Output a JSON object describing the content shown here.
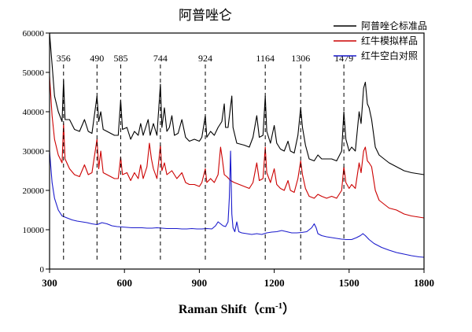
{
  "chart_data": {
    "type": "line",
    "title": "阿普唑仑",
    "xlabel": "Raman Shift（cm",
    "xlabel_sup": "-1",
    "xlabel_close": "）",
    "ylabel": "",
    "xlim": [
      300,
      1800
    ],
    "ylim": [
      0,
      60000
    ],
    "x_ticks": [
      300,
      600,
      900,
      1200,
      1500,
      1800
    ],
    "y_ticks": [
      0,
      10000,
      20000,
      30000,
      40000,
      50000,
      60000
    ],
    "grid": false,
    "legend_position": "top-right",
    "peak_labels": [
      356,
      490,
      585,
      744,
      924,
      1164,
      1306,
      1479
    ],
    "series": [
      {
        "name": "阿普唑仑标准品",
        "color": "#000000",
        "points": [
          [
            300,
            64000
          ],
          [
            310,
            52000
          ],
          [
            320,
            44000
          ],
          [
            335,
            40000
          ],
          [
            350,
            37500
          ],
          [
            356,
            48000
          ],
          [
            362,
            38000
          ],
          [
            380,
            38000
          ],
          [
            400,
            35500
          ],
          [
            420,
            35000
          ],
          [
            440,
            38000
          ],
          [
            455,
            35000
          ],
          [
            470,
            34500
          ],
          [
            490,
            44000
          ],
          [
            497,
            37500
          ],
          [
            505,
            40000
          ],
          [
            515,
            35500
          ],
          [
            530,
            35000
          ],
          [
            545,
            34500
          ],
          [
            560,
            34000
          ],
          [
            575,
            34000
          ],
          [
            585,
            43000
          ],
          [
            592,
            35500
          ],
          [
            610,
            36000
          ],
          [
            625,
            33000
          ],
          [
            640,
            35000
          ],
          [
            655,
            34000
          ],
          [
            665,
            37000
          ],
          [
            675,
            34000
          ],
          [
            695,
            38000
          ],
          [
            703,
            34000
          ],
          [
            716,
            37000
          ],
          [
            730,
            34000
          ],
          [
            744,
            47000
          ],
          [
            750,
            36000
          ],
          [
            760,
            41000
          ],
          [
            770,
            35000
          ],
          [
            780,
            36000
          ],
          [
            790,
            39000
          ],
          [
            800,
            34000
          ],
          [
            815,
            34500
          ],
          [
            830,
            38000
          ],
          [
            845,
            33500
          ],
          [
            860,
            32500
          ],
          [
            880,
            33000
          ],
          [
            900,
            32500
          ],
          [
            910,
            33500
          ],
          [
            924,
            39000
          ],
          [
            930,
            33500
          ],
          [
            945,
            35000
          ],
          [
            960,
            34000
          ],
          [
            975,
            36000
          ],
          [
            990,
            37500
          ],
          [
            1000,
            42000
          ],
          [
            1005,
            36000
          ],
          [
            1015,
            36000
          ],
          [
            1030,
            44000
          ],
          [
            1035,
            36000
          ],
          [
            1050,
            32000
          ],
          [
            1080,
            31500
          ],
          [
            1100,
            31000
          ],
          [
            1115,
            33500
          ],
          [
            1130,
            39000
          ],
          [
            1140,
            33500
          ],
          [
            1155,
            34000
          ],
          [
            1164,
            44000
          ],
          [
            1170,
            35000
          ],
          [
            1185,
            32000
          ],
          [
            1200,
            36500
          ],
          [
            1210,
            32000
          ],
          [
            1225,
            30500
          ],
          [
            1240,
            30000
          ],
          [
            1255,
            32500
          ],
          [
            1265,
            30000
          ],
          [
            1280,
            29500
          ],
          [
            1295,
            34000
          ],
          [
            1306,
            41000
          ],
          [
            1313,
            36000
          ],
          [
            1325,
            31500
          ],
          [
            1340,
            28000
          ],
          [
            1360,
            27500
          ],
          [
            1375,
            29000
          ],
          [
            1390,
            28000
          ],
          [
            1410,
            28000
          ],
          [
            1430,
            28000
          ],
          [
            1450,
            27500
          ],
          [
            1470,
            30000
          ],
          [
            1479,
            40000
          ],
          [
            1487,
            33000
          ],
          [
            1500,
            30000
          ],
          [
            1510,
            31000
          ],
          [
            1525,
            30000
          ],
          [
            1540,
            40000
          ],
          [
            1548,
            37000
          ],
          [
            1558,
            46000
          ],
          [
            1565,
            47500
          ],
          [
            1573,
            42000
          ],
          [
            1580,
            41000
          ],
          [
            1590,
            38000
          ],
          [
            1605,
            31000
          ],
          [
            1620,
            29000
          ],
          [
            1640,
            28000
          ],
          [
            1660,
            27000
          ],
          [
            1690,
            26000
          ],
          [
            1720,
            25000
          ],
          [
            1750,
            24500
          ],
          [
            1780,
            24200
          ],
          [
            1800,
            24000
          ]
        ]
      },
      {
        "name": "红牛模拟样品",
        "color": "#cc0000",
        "points": [
          [
            300,
            49000
          ],
          [
            310,
            39000
          ],
          [
            320,
            33000
          ],
          [
            335,
            29000
          ],
          [
            350,
            27000
          ],
          [
            356,
            37000
          ],
          [
            362,
            28000
          ],
          [
            380,
            25500
          ],
          [
            400,
            24000
          ],
          [
            420,
            23500
          ],
          [
            440,
            26500
          ],
          [
            455,
            24000
          ],
          [
            470,
            24500
          ],
          [
            490,
            33000
          ],
          [
            497,
            25500
          ],
          [
            505,
            30000
          ],
          [
            515,
            24500
          ],
          [
            530,
            24000
          ],
          [
            545,
            23500
          ],
          [
            560,
            23000
          ],
          [
            575,
            23000
          ],
          [
            585,
            28500
          ],
          [
            592,
            24000
          ],
          [
            610,
            24500
          ],
          [
            625,
            22500
          ],
          [
            640,
            24500
          ],
          [
            655,
            23000
          ],
          [
            665,
            26500
          ],
          [
            675,
            23000
          ],
          [
            690,
            26000
          ],
          [
            700,
            32000
          ],
          [
            708,
            28000
          ],
          [
            716,
            25500
          ],
          [
            730,
            23000
          ],
          [
            744,
            31500
          ],
          [
            750,
            25000
          ],
          [
            760,
            27000
          ],
          [
            770,
            24000
          ],
          [
            790,
            25000
          ],
          [
            810,
            23000
          ],
          [
            830,
            24500
          ],
          [
            845,
            22000
          ],
          [
            860,
            21500
          ],
          [
            880,
            21500
          ],
          [
            900,
            21000
          ],
          [
            910,
            22000
          ],
          [
            924,
            25500
          ],
          [
            930,
            22000
          ],
          [
            945,
            23000
          ],
          [
            960,
            22000
          ],
          [
            975,
            24000
          ],
          [
            985,
            31000
          ],
          [
            992,
            28000
          ],
          [
            1000,
            24000
          ],
          [
            1010,
            23500
          ],
          [
            1025,
            22500
          ],
          [
            1040,
            22000
          ],
          [
            1060,
            21500
          ],
          [
            1080,
            21000
          ],
          [
            1100,
            20500
          ],
          [
            1115,
            22000
          ],
          [
            1130,
            27000
          ],
          [
            1140,
            22500
          ],
          [
            1155,
            23000
          ],
          [
            1164,
            31000
          ],
          [
            1170,
            24500
          ],
          [
            1185,
            22000
          ],
          [
            1200,
            25500
          ],
          [
            1210,
            21500
          ],
          [
            1225,
            20500
          ],
          [
            1240,
            20000
          ],
          [
            1255,
            22500
          ],
          [
            1265,
            20000
          ],
          [
            1280,
            19500
          ],
          [
            1295,
            23000
          ],
          [
            1306,
            27500
          ],
          [
            1313,
            24000
          ],
          [
            1325,
            20500
          ],
          [
            1340,
            18500
          ],
          [
            1360,
            18000
          ],
          [
            1375,
            19000
          ],
          [
            1390,
            18500
          ],
          [
            1410,
            18000
          ],
          [
            1430,
            18500
          ],
          [
            1450,
            18000
          ],
          [
            1470,
            20000
          ],
          [
            1479,
            26000
          ],
          [
            1487,
            22000
          ],
          [
            1500,
            20500
          ],
          [
            1510,
            21500
          ],
          [
            1525,
            20500
          ],
          [
            1540,
            27000
          ],
          [
            1548,
            24500
          ],
          [
            1558,
            30000
          ],
          [
            1565,
            31000
          ],
          [
            1573,
            27500
          ],
          [
            1580,
            27000
          ],
          [
            1590,
            26000
          ],
          [
            1605,
            20000
          ],
          [
            1620,
            17500
          ],
          [
            1640,
            16500
          ],
          [
            1660,
            15500
          ],
          [
            1690,
            15000
          ],
          [
            1720,
            14000
          ],
          [
            1750,
            13500
          ],
          [
            1780,
            13200
          ],
          [
            1800,
            13000
          ]
        ]
      },
      {
        "name": "红牛空白对照",
        "color": "#1a1acc",
        "points": [
          [
            300,
            30000
          ],
          [
            310,
            22000
          ],
          [
            320,
            18000
          ],
          [
            335,
            15000
          ],
          [
            350,
            13500
          ],
          [
            370,
            13000
          ],
          [
            390,
            12500
          ],
          [
            410,
            12200
          ],
          [
            430,
            12000
          ],
          [
            450,
            11800
          ],
          [
            470,
            11500
          ],
          [
            490,
            11300
          ],
          [
            510,
            11800
          ],
          [
            530,
            11500
          ],
          [
            550,
            11000
          ],
          [
            570,
            10800
          ],
          [
            590,
            10700
          ],
          [
            610,
            10600
          ],
          [
            630,
            10500
          ],
          [
            650,
            10500
          ],
          [
            670,
            10500
          ],
          [
            690,
            10400
          ],
          [
            710,
            10400
          ],
          [
            730,
            10500
          ],
          [
            750,
            10400
          ],
          [
            770,
            10300
          ],
          [
            790,
            10300
          ],
          [
            810,
            10300
          ],
          [
            830,
            10200
          ],
          [
            850,
            10200
          ],
          [
            870,
            10300
          ],
          [
            890,
            10200
          ],
          [
            910,
            10200
          ],
          [
            930,
            10300
          ],
          [
            950,
            10200
          ],
          [
            965,
            11000
          ],
          [
            975,
            12000
          ],
          [
            985,
            11500
          ],
          [
            995,
            11000
          ],
          [
            1005,
            10800
          ],
          [
            1015,
            12000
          ],
          [
            1020,
            18000
          ],
          [
            1025,
            30000
          ],
          [
            1030,
            14000
          ],
          [
            1035,
            10500
          ],
          [
            1042,
            9500
          ],
          [
            1050,
            12000
          ],
          [
            1058,
            9500
          ],
          [
            1070,
            9200
          ],
          [
            1090,
            9000
          ],
          [
            1110,
            8800
          ],
          [
            1130,
            9000
          ],
          [
            1150,
            8800
          ],
          [
            1170,
            9200
          ],
          [
            1190,
            9400
          ],
          [
            1210,
            9500
          ],
          [
            1230,
            9800
          ],
          [
            1250,
            9500
          ],
          [
            1270,
            9200
          ],
          [
            1290,
            9200
          ],
          [
            1310,
            9300
          ],
          [
            1330,
            9500
          ],
          [
            1350,
            10500
          ],
          [
            1360,
            11500
          ],
          [
            1368,
            10500
          ],
          [
            1375,
            9000
          ],
          [
            1390,
            8500
          ],
          [
            1410,
            8200
          ],
          [
            1430,
            8000
          ],
          [
            1450,
            7800
          ],
          [
            1470,
            7600
          ],
          [
            1490,
            7500
          ],
          [
            1510,
            7500
          ],
          [
            1530,
            8000
          ],
          [
            1545,
            8500
          ],
          [
            1555,
            9000
          ],
          [
            1565,
            8500
          ],
          [
            1580,
            7500
          ],
          [
            1600,
            6500
          ],
          [
            1630,
            5500
          ],
          [
            1660,
            4800
          ],
          [
            1690,
            4200
          ],
          [
            1720,
            3800
          ],
          [
            1750,
            3400
          ],
          [
            1780,
            3100
          ],
          [
            1800,
            3000
          ]
        ]
      }
    ]
  }
}
